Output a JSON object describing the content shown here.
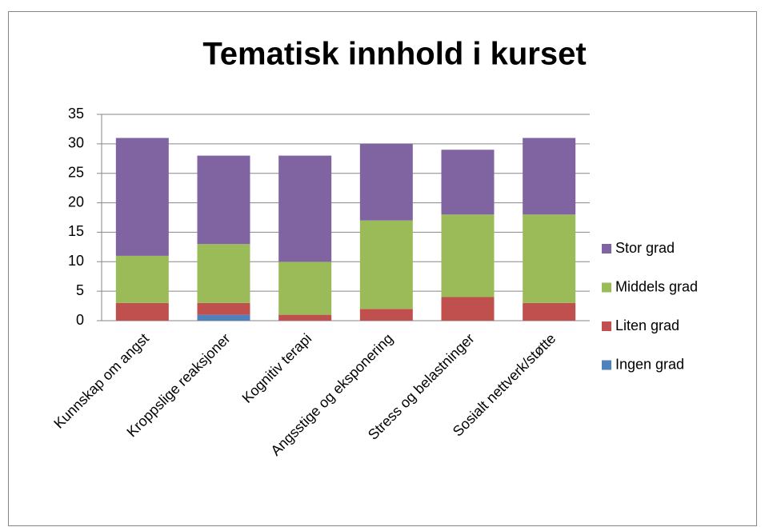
{
  "chart_data": {
    "type": "stacked_bar",
    "title": "Tematisk innhold i kurset",
    "categories": [
      "Kunnskap om angst",
      "Kroppslige reaksjoner",
      "Kognitiv terapi",
      "Angsstige og eksponering",
      "Stress og belastninger",
      "Sosialt nettverk/støtte"
    ],
    "series": [
      {
        "name": "Ingen grad",
        "color": "#4f81bd",
        "values": [
          0,
          1,
          0,
          0,
          0,
          0
        ]
      },
      {
        "name": "Liten grad",
        "color": "#c0504d",
        "values": [
          3,
          2,
          1,
          2,
          4,
          3
        ]
      },
      {
        "name": "Middels grad",
        "color": "#9bbb59",
        "values": [
          8,
          10,
          9,
          15,
          14,
          15
        ]
      },
      {
        "name": "Stor grad",
        "color": "#8064a2",
        "values": [
          20,
          15,
          18,
          13,
          11,
          13
        ]
      }
    ],
    "ylim": [
      0,
      35
    ],
    "yticks": [
      0,
      5,
      10,
      15,
      20,
      25,
      30,
      35
    ],
    "grid": true,
    "legend": "right"
  }
}
